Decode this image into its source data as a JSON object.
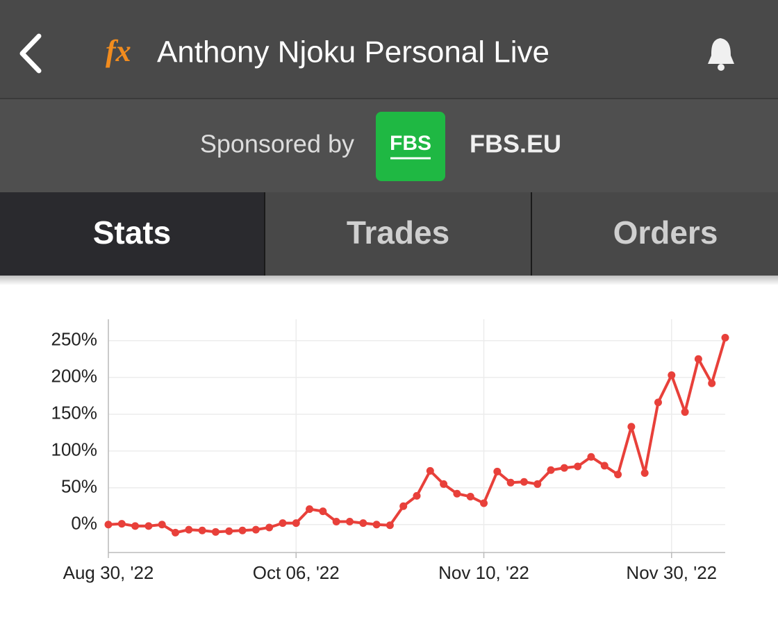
{
  "header": {
    "logo": "fx",
    "title": "Anthony Njoku Personal Live"
  },
  "sponsor": {
    "label": "Sponsored by",
    "logo_text": "FBS",
    "name": "FBS.EU"
  },
  "tabs": [
    "Stats",
    "Trades",
    "Orders"
  ],
  "chart_data": {
    "type": "line",
    "categories": [
      "Aug 30, '22",
      null,
      null,
      null,
      null,
      null,
      null,
      null,
      null,
      null,
      null,
      null,
      null,
      null,
      "Oct 06, '22",
      null,
      null,
      null,
      null,
      null,
      null,
      null,
      null,
      null,
      null,
      null,
      null,
      null,
      "Nov 10, '22",
      null,
      null,
      null,
      null,
      null,
      null,
      null,
      null,
      null,
      null,
      null,
      null,
      null,
      "Nov 30, '22",
      null,
      null,
      null,
      null
    ],
    "series": [
      {
        "color": "#e8403a",
        "values": [
          0,
          1,
          -2,
          -2,
          0,
          -11,
          -7,
          -8,
          -10,
          -9,
          -8,
          -7,
          -4,
          2,
          2,
          21,
          18,
          4,
          4,
          2,
          0,
          -1,
          25,
          39,
          73,
          55,
          42,
          38,
          29,
          72,
          57,
          58,
          55,
          74,
          77,
          79,
          92,
          80,
          68,
          133,
          70,
          166,
          203,
          153,
          225,
          192,
          254
        ]
      }
    ],
    "ylim": [
      -38,
      279
    ],
    "yticks": [
      {
        "value": 0,
        "label": "0%"
      },
      {
        "value": 50,
        "label": "50%"
      },
      {
        "value": 100,
        "label": "100%"
      },
      {
        "value": 150,
        "label": "150%"
      },
      {
        "value": 200,
        "label": "200%"
      },
      {
        "value": 250,
        "label": "250%"
      }
    ],
    "grid": true
  }
}
